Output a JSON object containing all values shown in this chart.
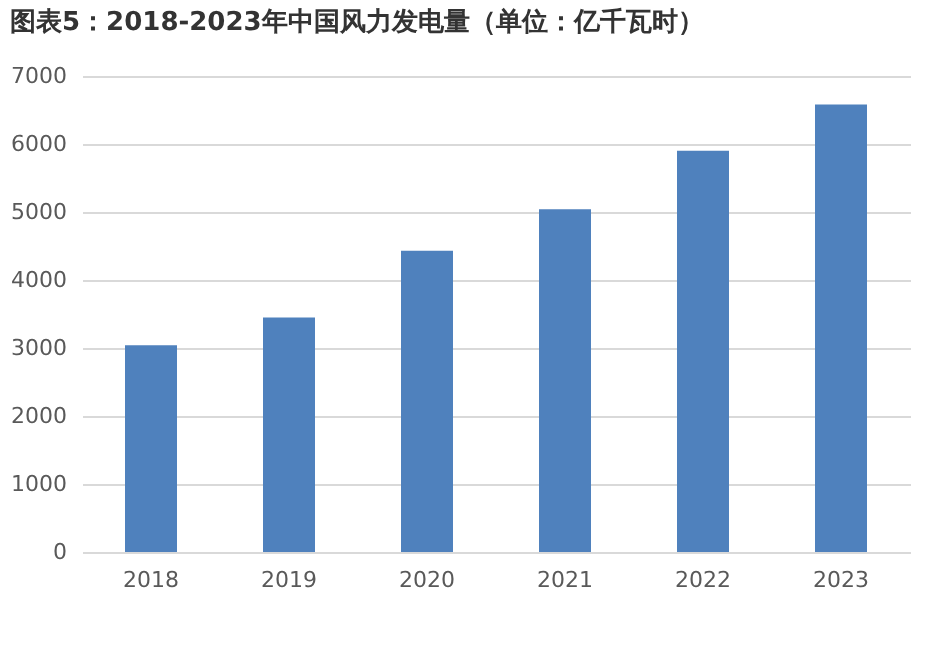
{
  "chart_data": {
    "type": "bar",
    "title": "图表5：2018-2023年中国风力发电量（单位：亿千瓦时）",
    "categories": [
      "2018",
      "2019",
      "2020",
      "2021",
      "2022",
      "2023"
    ],
    "values": [
      3040,
      3450,
      4430,
      5040,
      5900,
      6580
    ],
    "color": "#4f81bd",
    "ylim": [
      0,
      7000
    ],
    "yticks": [
      0,
      1000,
      2000,
      3000,
      4000,
      5000,
      6000,
      7000
    ],
    "grid": "y"
  }
}
